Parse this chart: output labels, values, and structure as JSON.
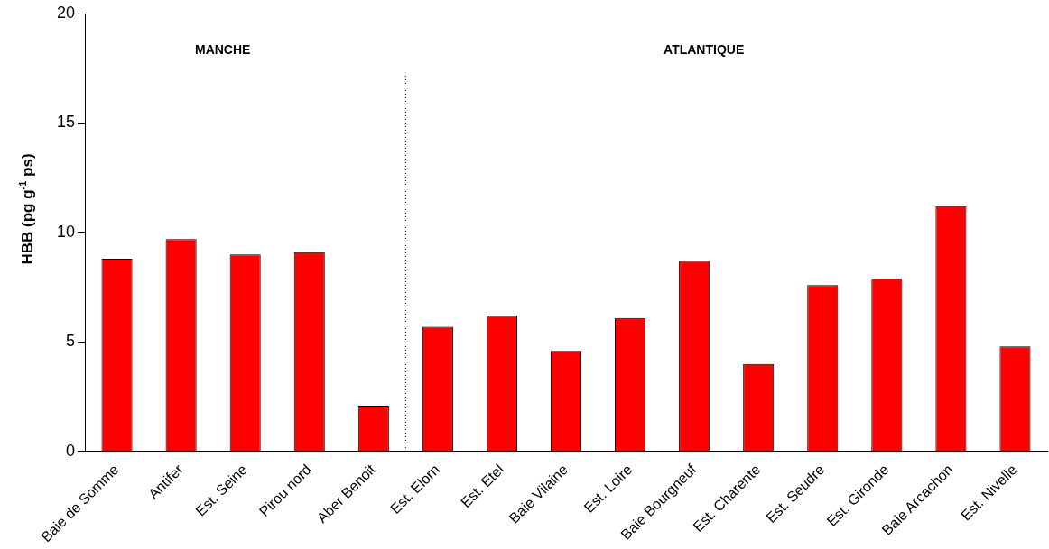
{
  "chart_data": {
    "type": "bar",
    "ylabel": "HBB (pg g$^{-1}$ ps)",
    "categories": [
      "Baie de Somme",
      "Antifer",
      "Est. Seine",
      "Pirou nord",
      "Aber Benoit",
      "Est. Elorn",
      "Est. Etel",
      "Baie Vilaine",
      "Est. Loire",
      "Baie Bourgneuf",
      "Est. Charente",
      "Est. Seudre",
      "Est. Gironde",
      "Baie Arcachon",
      "Est. Nivelle"
    ],
    "values": [
      8.8,
      9.7,
      9.0,
      9.1,
      2.1,
      5.7,
      6.2,
      4.6,
      6.1,
      8.7,
      4.0,
      7.6,
      7.9,
      11.2,
      4.8
    ],
    "color": "#ff0000",
    "ylim": [
      0,
      20
    ],
    "yticks": [
      0,
      5,
      10,
      15,
      20
    ],
    "grid": false,
    "legend": false,
    "annotations": [
      "MANCHE",
      "ATLANTIQUE"
    ]
  }
}
